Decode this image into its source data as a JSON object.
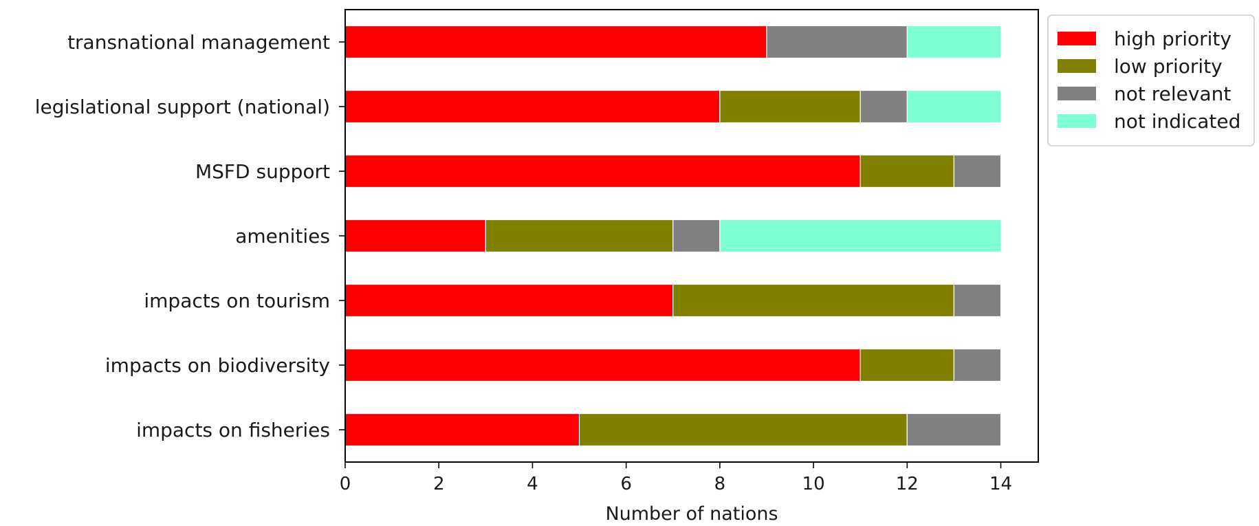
{
  "chart_data": {
    "type": "bar",
    "orientation": "horizontal",
    "stacked": true,
    "title": "",
    "xlabel": "Number of nations",
    "ylabel": "",
    "xlim": [
      0,
      14.8
    ],
    "xticks": [
      0,
      2,
      4,
      6,
      8,
      10,
      12,
      14
    ],
    "grid": false,
    "legend_position": "outside-top-right",
    "categories": [
      "transnational management",
      "legislational support (national)",
      "MSFD support",
      "amenities",
      "impacts on tourism",
      "impacts on biodiversity",
      "impacts on fisheries"
    ],
    "series": [
      {
        "name": "high priority",
        "color": "#ff0000",
        "values": [
          9,
          8,
          11,
          3,
          7,
          11,
          5
        ]
      },
      {
        "name": "low priority",
        "color": "#808000",
        "values": [
          0,
          3,
          2,
          4,
          6,
          2,
          7
        ]
      },
      {
        "name": "not relevant",
        "color": "#808080",
        "values": [
          3,
          1,
          1,
          1,
          1,
          1,
          2
        ]
      },
      {
        "name": "not indicated",
        "color": "#7fffd4",
        "values": [
          2,
          2,
          0,
          6,
          0,
          0,
          0
        ]
      }
    ]
  }
}
